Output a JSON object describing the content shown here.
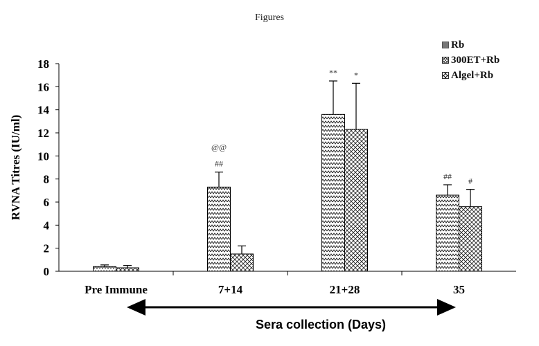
{
  "page": {
    "header": "Figures"
  },
  "legend": [
    {
      "label": "Rb",
      "color": "#777777"
    },
    {
      "label": "300ET+Rb",
      "pattern": "zigzag"
    },
    {
      "label": "Algel+Rb",
      "pattern": "crosshatch"
    }
  ],
  "chart_data": {
    "type": "bar",
    "title": "",
    "ylabel": "RVNA Titres (IU/ml)",
    "xlabel": "Sera collection (Days)",
    "ylim": [
      0,
      18
    ],
    "yticks": [
      "0",
      "2",
      "4",
      "6",
      "8",
      "10",
      "12",
      "14",
      "16",
      "18"
    ],
    "categories": [
      "Pre Immune",
      "7+14",
      "21+28",
      "35"
    ],
    "grid": false,
    "legend_position": "top-right",
    "series": [
      {
        "name": "Rb",
        "values": [
          0,
          0,
          0,
          0
        ],
        "errors": [
          0,
          0,
          0,
          0
        ]
      },
      {
        "name": "300ET+Rb",
        "values": [
          0.4,
          7.3,
          13.6,
          6.6
        ],
        "errors": [
          0.15,
          1.3,
          2.9,
          0.9
        ]
      },
      {
        "name": "Algel+Rb",
        "values": [
          0.3,
          1.5,
          12.3,
          5.6
        ],
        "errors": [
          0.2,
          0.7,
          4.0,
          1.5
        ]
      }
    ],
    "annotations": [
      {
        "category": "7+14",
        "series": "300ET+Rb",
        "lines": [
          "@@",
          "##"
        ]
      },
      {
        "category": "21+28",
        "series": "300ET+Rb",
        "lines": [
          "**"
        ]
      },
      {
        "category": "21+28",
        "series": "Algel+Rb",
        "lines": [
          "*"
        ]
      },
      {
        "category": "35",
        "series": "300ET+Rb",
        "lines": [
          "##"
        ]
      },
      {
        "category": "35",
        "series": "Algel+Rb",
        "lines": [
          "#"
        ]
      }
    ]
  }
}
